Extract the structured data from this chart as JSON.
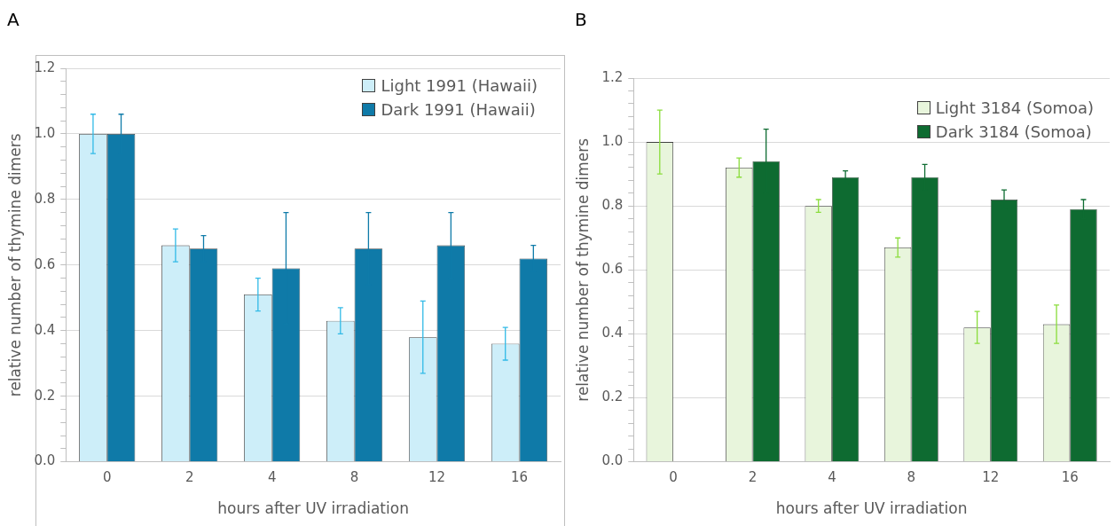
{
  "chart_data": [
    {
      "type": "bar",
      "annotations": [
        "A"
      ],
      "xlabel": "hours after UV irradiation",
      "ylabel": "relative number of thymine dimers",
      "categories": [
        "0",
        "2",
        "4",
        "8",
        "12",
        "16"
      ],
      "series": [
        {
          "name": "Light 1991 (Hawaii)",
          "color": "#cdeef9",
          "values": [
            1.0,
            0.66,
            0.51,
            0.43,
            0.38,
            0.36
          ],
          "errors": [
            0.06,
            0.05,
            0.05,
            0.04,
            0.11,
            0.05
          ]
        },
        {
          "name": "Dark 1991 (Hawaii)",
          "color": "#0f7aa8",
          "values": [
            1.0,
            0.65,
            0.59,
            0.65,
            0.66,
            0.62
          ],
          "errors": [
            0.06,
            0.04,
            0.17,
            0.11,
            0.1,
            0.04
          ]
        }
      ],
      "ylim": [
        0,
        1.2
      ],
      "yticks": [
        {
          "value": 0,
          "label": "0.0"
        },
        {
          "value": 0.04,
          "label": null
        },
        {
          "value": 0.08,
          "label": null
        },
        {
          "value": 0.12,
          "label": null
        },
        {
          "value": 0.16,
          "label": null
        },
        {
          "value": 0.2,
          "label": "0.2"
        },
        {
          "value": 0.24,
          "label": null
        },
        {
          "value": 0.28,
          "label": null
        },
        {
          "value": 0.32,
          "label": null
        },
        {
          "value": 0.36,
          "label": null
        },
        {
          "value": 0.4,
          "label": "0.4"
        },
        {
          "value": 0.44,
          "label": null
        },
        {
          "value": 0.48,
          "label": null
        },
        {
          "value": 0.52,
          "label": null
        },
        {
          "value": 0.56,
          "label": null
        },
        {
          "value": 0.6,
          "label": "0.6"
        },
        {
          "value": 0.64,
          "label": null
        },
        {
          "value": 0.68,
          "label": null
        },
        {
          "value": 0.72,
          "label": null
        },
        {
          "value": 0.76,
          "label": null
        },
        {
          "value": 0.8,
          "label": "0.8"
        },
        {
          "value": 0.84,
          "label": null
        },
        {
          "value": 0.88,
          "label": null
        },
        {
          "value": 0.92,
          "label": null
        },
        {
          "value": 0.96,
          "label": null
        },
        {
          "value": 1.0,
          "label": "1.0"
        },
        {
          "value": 1.04,
          "label": null
        },
        {
          "value": 1.08,
          "label": null
        },
        {
          "value": 1.12,
          "label": null
        },
        {
          "value": 1.16,
          "label": null
        },
        {
          "value": 1.2,
          "label": "1.2"
        }
      ],
      "grid": "y",
      "legend": "top right"
    },
    {
      "type": "bar",
      "annotations": [
        "B"
      ],
      "xlabel": "hours after UV irradiation",
      "ylabel": "relative number of thymine dimers",
      "categories": [
        "0",
        "2",
        "4",
        "8",
        "12",
        "16"
      ],
      "series": [
        {
          "name": "Light 3184 (Somoa)",
          "color": "#e8f5dc",
          "values": [
            1.0,
            0.92,
            0.8,
            0.67,
            0.42,
            0.43
          ],
          "errors": [
            0.1,
            0.03,
            0.02,
            0.03,
            0.05,
            0.06
          ]
        },
        {
          "name": "Dark 3184 (Somoa)",
          "color": "#0e6b31",
          "values": [
            null,
            0.94,
            0.89,
            0.89,
            0.82,
            0.79
          ],
          "errors": [
            null,
            0.1,
            0.02,
            0.04,
            0.03,
            0.03
          ]
        }
      ],
      "ylim": [
        0,
        1.2
      ],
      "yticks": [
        {
          "value": 0,
          "label": "0.0"
        },
        {
          "value": 0.04,
          "label": null
        },
        {
          "value": 0.08,
          "label": null
        },
        {
          "value": 0.12,
          "label": null
        },
        {
          "value": 0.16,
          "label": null
        },
        {
          "value": 0.2,
          "label": "0.2"
        },
        {
          "value": 0.24,
          "label": null
        },
        {
          "value": 0.28,
          "label": null
        },
        {
          "value": 0.32,
          "label": null
        },
        {
          "value": 0.36,
          "label": null
        },
        {
          "value": 0.4,
          "label": "0.4"
        },
        {
          "value": 0.44,
          "label": null
        },
        {
          "value": 0.48,
          "label": null
        },
        {
          "value": 0.52,
          "label": null
        },
        {
          "value": 0.56,
          "label": null
        },
        {
          "value": 0.6,
          "label": "0.6"
        },
        {
          "value": 0.64,
          "label": null
        },
        {
          "value": 0.68,
          "label": null
        },
        {
          "value": 0.72,
          "label": null
        },
        {
          "value": 0.76,
          "label": null
        },
        {
          "value": 0.8,
          "label": "0.8"
        },
        {
          "value": 0.84,
          "label": null
        },
        {
          "value": 0.88,
          "label": null
        },
        {
          "value": 0.92,
          "label": null
        },
        {
          "value": 0.96,
          "label": null
        },
        {
          "value": 1.0,
          "label": "1.0"
        },
        {
          "value": 1.04,
          "label": null
        },
        {
          "value": 1.08,
          "label": null
        },
        {
          "value": 1.12,
          "label": null
        },
        {
          "value": 1.16,
          "label": null
        },
        {
          "value": 1.2,
          "label": "1.2"
        }
      ],
      "grid": "y",
      "legend": "top right"
    }
  ]
}
